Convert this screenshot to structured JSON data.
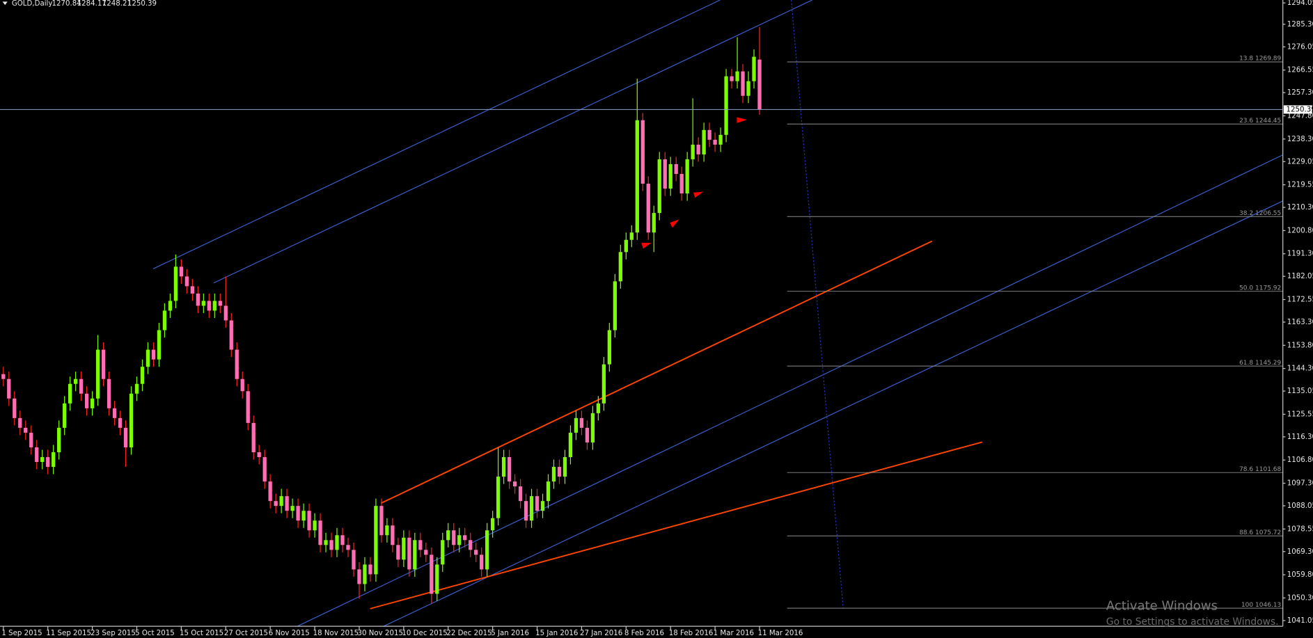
{
  "chart_data": {
    "type": "candlestick",
    "title": "GOLD,Daily",
    "categories": [
      "1 Sep 2015",
      null,
      null,
      null,
      null,
      null,
      null,
      null,
      "11 Sep 2015",
      null,
      null,
      null,
      null,
      null,
      null,
      null,
      "23 Sep 2015",
      null,
      null,
      null,
      null,
      null,
      null,
      null,
      "5 Oct 2015",
      null,
      null,
      null,
      null,
      null,
      null,
      null,
      "15 Oct 2015",
      null,
      null,
      null,
      null,
      null,
      null,
      null,
      "27 Oct 2015",
      null,
      null,
      null,
      null,
      null,
      null,
      null,
      "6 Nov 2015",
      null,
      null,
      null,
      null,
      null,
      null,
      null,
      "18 Nov 2015",
      null,
      null,
      null,
      null,
      null,
      null,
      null,
      "30 Nov 2015",
      null,
      null,
      null,
      null,
      null,
      null,
      null,
      "10 Dec 2015",
      null,
      null,
      null,
      null,
      null,
      null,
      null,
      "22 Dec 2015",
      null,
      null,
      null,
      null,
      null,
      null,
      null,
      "5 Jan 2016",
      null,
      null,
      null,
      null,
      null,
      null,
      null,
      "15 Jan 2016",
      null,
      null,
      null,
      null,
      null,
      null,
      null,
      "27 Jan 2016",
      null,
      null,
      null,
      null,
      null,
      null,
      null,
      "8 Feb 2016",
      null,
      null,
      null,
      null,
      null,
      null,
      null,
      "18 Feb 2016",
      null,
      null,
      null,
      null,
      null,
      null,
      null,
      "1 Mar 2016",
      null,
      null,
      null,
      null,
      null,
      null,
      null,
      "11 Mar 2016"
    ],
    "open": [
      1142,
      1140,
      1132,
      1124,
      1120,
      1118,
      1112,
      1106,
      1108,
      1104,
      1110,
      1120,
      1130,
      1138,
      1140,
      1134,
      1128,
      1132,
      1152,
      1140,
      1128,
      1124,
      1120,
      1112,
      1134,
      1138,
      1145,
      1152,
      1148,
      1160,
      1168,
      1172,
      1186,
      1182,
      1178,
      1175,
      1170,
      1172,
      1168,
      1172,
      1170,
      1164,
      1152,
      1140,
      1135,
      1122,
      1110,
      1108,
      1098,
      1090,
      1088,
      1092,
      1086,
      1088,
      1082,
      1086,
      1078,
      1082,
      1072,
      1074,
      1070,
      1076,
      1072,
      1070,
      1062,
      1056,
      1064,
      1060,
      1088,
      1076,
      1080,
      1072,
      1066,
      1075,
      1062,
      1074,
      1070,
      1068,
      1052,
      1064,
      1074,
      1078,
      1072,
      1076,
      1074,
      1070,
      1068,
      1062,
      1078,
      1083,
      1100,
      1108,
      1098,
      1096,
      1090,
      1082,
      1092,
      1086,
      1090,
      1098,
      1104,
      1100,
      1108,
      1118,
      1124,
      1120,
      1114,
      1126,
      1130,
      1146,
      1160,
      1180,
      1192,
      1197,
      1200,
      1246,
      1220,
      1200,
      1208,
      1230,
      1218,
      1228,
      1224,
      1216,
      1230,
      1236,
      1232,
      1242,
      1238,
      1236,
      1240,
      1264,
      1262,
      1266,
      1256,
      1262,
      1270.84
    ],
    "high": [
      1145,
      1143,
      1135,
      1127,
      1123,
      1121,
      1115,
      1111,
      1111,
      1113,
      1123,
      1133,
      1141,
      1143,
      1143,
      1137,
      1135,
      1158,
      1155,
      1143,
      1131,
      1127,
      1123,
      1137,
      1141,
      1148,
      1155,
      1155,
      1163,
      1171,
      1175,
      1191,
      1189,
      1185,
      1181,
      1178,
      1175,
      1175,
      1175,
      1175,
      1182,
      1167,
      1155,
      1143,
      1138,
      1125,
      1113,
      1111,
      1101,
      1093,
      1095,
      1095,
      1091,
      1091,
      1089,
      1089,
      1085,
      1085,
      1077,
      1077,
      1079,
      1079,
      1075,
      1073,
      1065,
      1067,
      1067,
      1091,
      1091,
      1083,
      1083,
      1075,
      1078,
      1078,
      1077,
      1077,
      1073,
      1071,
      1067,
      1077,
      1081,
      1081,
      1079,
      1079,
      1077,
      1073,
      1071,
      1081,
      1086,
      1112,
      1111,
      1111,
      1101,
      1099,
      1093,
      1095,
      1095,
      1093,
      1101,
      1107,
      1107,
      1111,
      1121,
      1127,
      1127,
      1123,
      1129,
      1133,
      1149,
      1163,
      1183,
      1195,
      1200,
      1203,
      1263,
      1249,
      1223,
      1211,
      1233,
      1233,
      1231,
      1231,
      1227,
      1233,
      1255,
      1239,
      1245,
      1245,
      1241,
      1243,
      1267,
      1267,
      1280,
      1269,
      1266,
      1275,
      1284.17
    ],
    "low": [
      1137,
      1129,
      1121,
      1117,
      1115,
      1109,
      1103,
      1103,
      1101,
      1101,
      1107,
      1117,
      1127,
      1135,
      1131,
      1125,
      1125,
      1129,
      1137,
      1125,
      1121,
      1117,
      1104,
      1109,
      1131,
      1135,
      1142,
      1145,
      1145,
      1157,
      1165,
      1169,
      1179,
      1175,
      1172,
      1167,
      1167,
      1165,
      1165,
      1167,
      1161,
      1149,
      1137,
      1132,
      1119,
      1107,
      1105,
      1095,
      1087,
      1085,
      1085,
      1083,
      1083,
      1079,
      1079,
      1075,
      1075,
      1069,
      1069,
      1067,
      1067,
      1069,
      1067,
      1059,
      1050,
      1053,
      1057,
      1057,
      1073,
      1073,
      1069,
      1063,
      1063,
      1059,
      1059,
      1067,
      1065,
      1048,
      1049,
      1061,
      1071,
      1069,
      1069,
      1071,
      1067,
      1065,
      1059,
      1059,
      1075,
      1080,
      1097,
      1095,
      1093,
      1087,
      1079,
      1079,
      1083,
      1083,
      1087,
      1095,
      1097,
      1097,
      1105,
      1115,
      1117,
      1111,
      1111,
      1123,
      1127,
      1143,
      1157,
      1177,
      1189,
      1194,
      1197,
      1217,
      1197,
      1192,
      1205,
      1215,
      1215,
      1221,
      1213,
      1213,
      1227,
      1229,
      1229,
      1235,
      1233,
      1233,
      1237,
      1259,
      1259,
      1253,
      1253,
      1259,
      1248.21
    ],
    "close": [
      1140,
      1132,
      1124,
      1120,
      1118,
      1112,
      1106,
      1108,
      1104,
      1110,
      1120,
      1130,
      1138,
      1140,
      1134,
      1128,
      1132,
      1152,
      1140,
      1128,
      1124,
      1120,
      1112,
      1134,
      1138,
      1145,
      1152,
      1148,
      1160,
      1168,
      1172,
      1186,
      1182,
      1178,
      1175,
      1170,
      1172,
      1168,
      1172,
      1170,
      1164,
      1152,
      1140,
      1135,
      1122,
      1110,
      1108,
      1098,
      1090,
      1088,
      1092,
      1086,
      1088,
      1082,
      1086,
      1078,
      1082,
      1072,
      1074,
      1070,
      1076,
      1072,
      1070,
      1062,
      1056,
      1064,
      1060,
      1088,
      1076,
      1080,
      1072,
      1066,
      1075,
      1062,
      1074,
      1070,
      1068,
      1052,
      1064,
      1074,
      1078,
      1072,
      1076,
      1074,
      1070,
      1068,
      1062,
      1078,
      1083,
      1100,
      1108,
      1098,
      1096,
      1090,
      1082,
      1092,
      1086,
      1090,
      1098,
      1104,
      1100,
      1108,
      1118,
      1124,
      1120,
      1114,
      1126,
      1130,
      1146,
      1160,
      1180,
      1192,
      1197,
      1200,
      1246,
      1220,
      1200,
      1208,
      1230,
      1218,
      1228,
      1224,
      1216,
      1230,
      1236,
      1232,
      1242,
      1238,
      1236,
      1240,
      1264,
      1262,
      1266,
      1256,
      1262,
      1272,
      1250.39
    ],
    "up_color": "#7cfc00",
    "down_color": "#ff6eb4",
    "ylim": [
      1038.7,
      1295.25
    ],
    "yticks": [
      1294.05,
      {
        "value": 1285.3,
        "label": "1285.30"
      },
      1276.05,
      1266.55,
      {
        "value": 1257.3,
        "label": "1257.30"
      },
      {
        "value": 1247.8,
        "label": "1247.80"
      },
      {
        "value": 1238.3,
        "label": "1238.30"
      },
      1229.05,
      1219.55,
      {
        "value": 1210.3,
        "label": "1210.30"
      },
      {
        "value": 1200.8,
        "label": "1200.80"
      },
      {
        "value": 1191.3,
        "label": "1191.30"
      },
      1182.05,
      1172.55,
      {
        "value": 1163.3,
        "label": "1163.30"
      },
      {
        "value": 1153.8,
        "label": "1153.80"
      },
      {
        "value": 1144.3,
        "label": "1144.30"
      },
      1135.05,
      1125.55,
      {
        "value": 1116.3,
        "label": "1116.30"
      },
      {
        "value": 1106.8,
        "label": "1106.80"
      },
      {
        "value": 1097.3,
        "label": "1097.30"
      },
      1088.05,
      1078.55,
      {
        "value": 1069.3,
        "label": "1069.30"
      },
      {
        "value": 1059.8,
        "label": "1059.80"
      },
      {
        "value": 1050.3,
        "label": "1050.30"
      },
      1041.05
    ],
    "fib_levels": [
      {
        "value": 1269.89,
        "label": "13.8 1269.89"
      },
      {
        "value": 1244.45,
        "label": "23.6 1244.45"
      },
      {
        "value": 1206.55,
        "label": "38.2 1206.55"
      },
      {
        "value": 1175.92,
        "label": "50.0 1175.92"
      },
      {
        "value": 1145.29,
        "label": "61.8 1145.29"
      },
      {
        "value": 1101.68,
        "label": "78.6 1101.68"
      },
      {
        "value": 1075.72,
        "label": "88.6 1075.72"
      },
      {
        "value": 1046.13,
        "label": "100 1046.13"
      }
    ]
  },
  "watermark": {
    "title": "Activate Windows",
    "subtitle": "Go to Settings to activate Windows."
  }
}
